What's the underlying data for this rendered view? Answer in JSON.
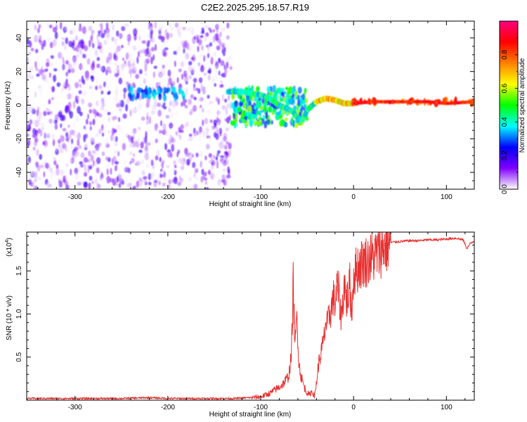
{
  "figure_title": "C2E2.2025.295.18.57.R19",
  "colors": {
    "snr_line": "#e83030",
    "axis": "#000000",
    "background": "#ffffff"
  },
  "chart_data": [
    {
      "type": "heatmap",
      "name": "spectrogram",
      "title": "C2E2.2025.295.18.57.R19",
      "xlabel": "Height of straight line (km)",
      "ylabel": "Frequency (Hz)",
      "xlim": [
        -352,
        130
      ],
      "ylim": [
        -50,
        50
      ],
      "xticks": [
        -300,
        -200,
        -100,
        0,
        100
      ],
      "yticks": [
        -40,
        -20,
        0,
        20,
        40
      ],
      "colorbar": {
        "label": "Normalized spectral amplitude",
        "range": [
          0,
          1
        ],
        "ticks": [
          "0.0",
          "0.2",
          "0.4",
          "0.6",
          "0.8"
        ],
        "tick_values": [
          0.0,
          0.2,
          0.4,
          0.6,
          0.8
        ],
        "colormap": [
          "#ffffff",
          "#8000ff",
          "#0000ff",
          "#00ffff",
          "#00ff00",
          "#ffff00",
          "#ff8000",
          "#ff0000",
          "#ff0080"
        ]
      },
      "regions": [
        {
          "desc": "scattered noise",
          "x": [
            -352,
            -132
          ],
          "freq": [
            -50,
            48
          ],
          "amplitude": [
            0.0,
            0.2
          ]
        },
        {
          "desc": "noise band",
          "x": [
            -242,
            -182
          ],
          "freq": [
            4,
            10
          ],
          "amplitude": [
            0.2,
            0.4
          ]
        },
        {
          "desc": "signal onset",
          "x": [
            -132,
            -50
          ],
          "freq": [
            -12,
            10
          ],
          "amplitude": [
            0.2,
            0.6
          ]
        },
        {
          "desc": "stable tone",
          "x": [
            0,
            130
          ],
          "freq": [
            1,
            3
          ],
          "amplitude": [
            0.7,
            0.9
          ]
        }
      ],
      "ridge": {
        "x": [
          -135,
          -120,
          -100,
          -90,
          -80,
          -72,
          -65,
          -60,
          -55,
          -50,
          -40,
          -30,
          -20,
          -10,
          0,
          20,
          50,
          80,
          100,
          130
        ],
        "freq": [
          8,
          8,
          6,
          4,
          0,
          -2,
          -4,
          -8,
          -9,
          -3,
          2,
          4,
          3,
          1,
          1,
          2,
          2,
          2,
          1,
          2
        ]
      }
    },
    {
      "type": "line",
      "name": "snr",
      "xlabel": "Height of straight line (km)",
      "ylabel": "SNR (10 * v/v)",
      "y_multiplier_label": "(x10",
      "y_multiplier_exp": "4",
      "xlim": [
        -352,
        130
      ],
      "ylim": [
        0,
        1.95
      ],
      "xticks": [
        -300,
        -200,
        -100,
        0,
        100
      ],
      "yticks": [
        0.5,
        1.0,
        1.5
      ],
      "ytick_labels": [
        "0.5",
        "1.0",
        "1.5"
      ],
      "series": [
        {
          "name": "SNR",
          "color": "#e83030",
          "x": [
            -352,
            -300,
            -250,
            -220,
            -200,
            -150,
            -130,
            -110,
            -100,
            -95,
            -90,
            -85,
            -80,
            -75,
            -70,
            -67,
            -65,
            -63,
            -61,
            -59,
            -57,
            -55,
            -52,
            -48,
            -45,
            -42,
            -40,
            -38,
            -36,
            -34,
            -32,
            -30,
            -28,
            -26,
            -24,
            -22,
            -20,
            -18,
            -16,
            -14,
            -12,
            -10,
            -8,
            -6,
            -4,
            -2,
            0,
            5,
            10,
            15,
            20,
            25,
            30,
            35,
            40,
            50,
            60,
            70,
            80,
            90,
            100,
            110,
            118,
            122,
            126,
            130
          ],
          "y": [
            0.02,
            0.02,
            0.02,
            0.03,
            0.02,
            0.02,
            0.02,
            0.03,
            0.04,
            0.06,
            0.08,
            0.12,
            0.15,
            0.2,
            0.28,
            0.5,
            1.35,
            0.6,
            1.0,
            0.45,
            0.3,
            0.22,
            0.12,
            0.06,
            0.1,
            0.05,
            0.2,
            0.4,
            0.5,
            0.6,
            0.7,
            0.9,
            0.85,
            1.0,
            1.05,
            1.2,
            1.1,
            1.3,
            1.25,
            1.0,
            1.05,
            1.4,
            1.15,
            1.2,
            1.35,
            1.0,
            1.45,
            1.55,
            1.6,
            1.62,
            1.65,
            1.7,
            1.75,
            1.8,
            1.83,
            1.84,
            1.85,
            1.85,
            1.86,
            1.86,
            1.87,
            1.88,
            1.86,
            1.76,
            1.82,
            1.85
          ]
        }
      ]
    }
  ]
}
